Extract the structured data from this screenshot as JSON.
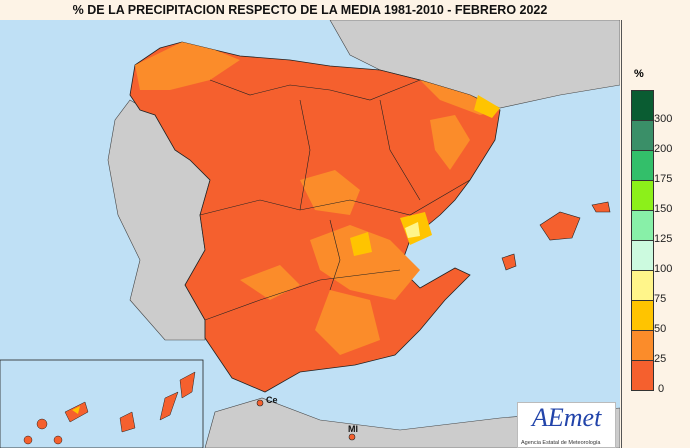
{
  "title": "% DE LA PRECIPITACION RESPECTO DE LA MEDIA 1981-2010  - FEBRERO 2022",
  "legend": {
    "unit": "%",
    "labels": [
      "300",
      "200",
      "175",
      "150",
      "125",
      "100",
      "75",
      "50",
      "25",
      "0"
    ],
    "colors": [
      "#0a5c32",
      "#3a8f68",
      "#33bf6a",
      "#8cf01a",
      "#88f0a8",
      "#ccfadf",
      "#fff58a",
      "#ffc400",
      "#fb8c2a",
      "#f5602e"
    ]
  },
  "map": {
    "cities": [
      "Ce",
      "Ml"
    ],
    "sea_color": "#bfe0f5",
    "land_outside_color": "#cccccc"
  },
  "logo": {
    "text": "AEmet",
    "subtitle": "Agencia Estatal de Meteorología"
  }
}
